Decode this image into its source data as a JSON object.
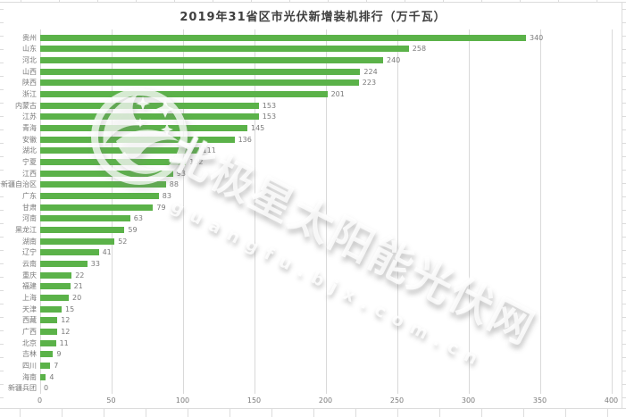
{
  "chart_data": {
    "type": "bar",
    "orientation": "horizontal",
    "title": "2019年31省区市光伏新增装机排行（万千瓦）",
    "categories": [
      "贵州",
      "山东",
      "河北",
      "山西",
      "陕西",
      "浙江",
      "内蒙古",
      "江苏",
      "青海",
      "安徽",
      "湖北",
      "宁夏",
      "江西",
      "新疆自治区",
      "广东",
      "甘肃",
      "河南",
      "黑龙江",
      "湖南",
      "辽宁",
      "云南",
      "重庆",
      "福建",
      "上海",
      "天津",
      "西藏",
      "广西",
      "北京",
      "吉林",
      "四川",
      "海南",
      "新疆兵团"
    ],
    "values": [
      340,
      258,
      240,
      224,
      223,
      201,
      153,
      153,
      145,
      136,
      111,
      102,
      93,
      88,
      83,
      79,
      63,
      59,
      52,
      41,
      33,
      22,
      21,
      20,
      15,
      12,
      12,
      11,
      9,
      7,
      4,
      0
    ],
    "xlabel": "",
    "ylabel": "",
    "x_ticks": [
      0,
      50,
      100,
      150,
      200,
      250,
      300,
      350,
      400
    ],
    "xlim": [
      0,
      400
    ],
    "grid": true,
    "legend": false,
    "bar_color": "#5bb249",
    "gridline_color": "#d9d9d9",
    "label_color": "#7a7a7a",
    "title_color": "#3f3f3f"
  },
  "watermark": {
    "main_text": "北极星太阳能光伏网",
    "sub_text": "guangfu.bjx.com.cn",
    "logo": "polaris-bird-logo"
  }
}
